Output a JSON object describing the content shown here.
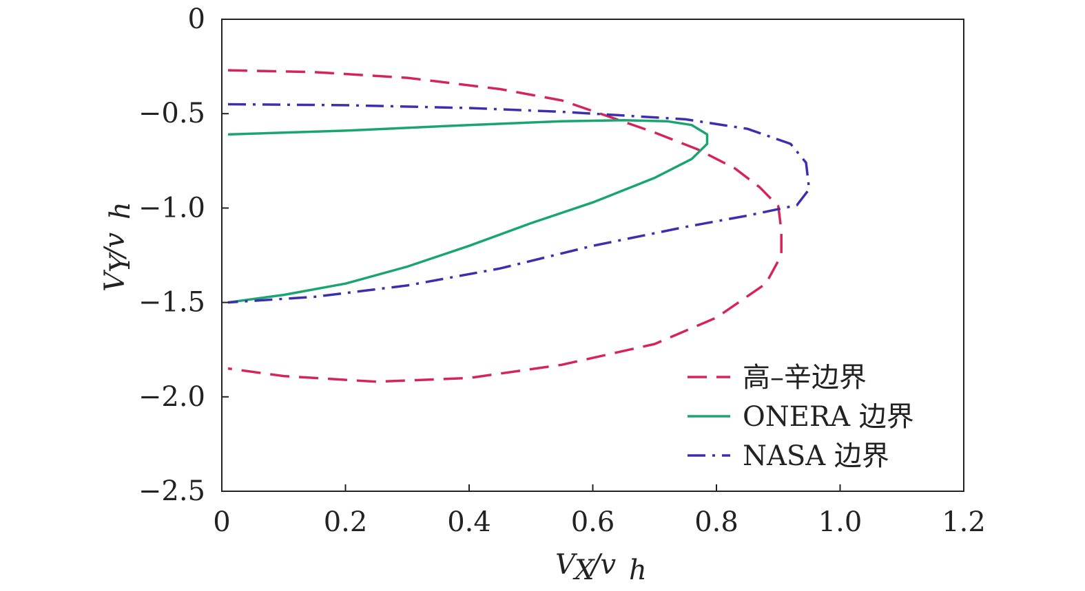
{
  "chart_data": {
    "type": "line",
    "xlabel": "V_X/v_h",
    "ylabel": "V_Y/v_h",
    "xlim": [
      0,
      1.2
    ],
    "ylim": [
      -2.5,
      0
    ],
    "x_ticks": [
      0,
      0.2,
      0.4,
      0.6,
      0.8,
      1.0,
      1.2
    ],
    "x_tick_labels": [
      "0",
      "0.2",
      "0.4",
      "0.6",
      "0.8",
      "1.0",
      "1.2"
    ],
    "y_ticks": [
      0,
      -0.5,
      -1.0,
      -1.5,
      -2.0,
      -2.5
    ],
    "y_tick_labels": [
      "0",
      "−0.5",
      "−1.0",
      "−1.5",
      "−2.0",
      "−2.5"
    ],
    "grid": false,
    "legend_position": "bottom-right",
    "series": [
      {
        "name": "高–辛边界",
        "color": "#d6245a",
        "dash": "dashed",
        "points": [
          [
            0.01,
            -0.27
          ],
          [
            0.15,
            -0.28
          ],
          [
            0.3,
            -0.31
          ],
          [
            0.45,
            -0.37
          ],
          [
            0.55,
            -0.43
          ],
          [
            0.63,
            -0.52
          ],
          [
            0.7,
            -0.6
          ],
          [
            0.77,
            -0.69
          ],
          [
            0.83,
            -0.79
          ],
          [
            0.87,
            -0.89
          ],
          [
            0.9,
            -0.99
          ],
          [
            0.905,
            -1.12
          ],
          [
            0.905,
            -1.25
          ],
          [
            0.88,
            -1.4
          ],
          [
            0.8,
            -1.58
          ],
          [
            0.7,
            -1.72
          ],
          [
            0.55,
            -1.83
          ],
          [
            0.4,
            -1.9
          ],
          [
            0.25,
            -1.92
          ],
          [
            0.1,
            -1.89
          ],
          [
            0.01,
            -1.85
          ]
        ]
      },
      {
        "name": "ONERA 边界",
        "color": "#1aa56f",
        "dash": "solid",
        "points": [
          [
            0.01,
            -0.61
          ],
          [
            0.2,
            -0.59
          ],
          [
            0.4,
            -0.56
          ],
          [
            0.55,
            -0.54
          ],
          [
            0.65,
            -0.535
          ],
          [
            0.72,
            -0.54
          ],
          [
            0.76,
            -0.56
          ],
          [
            0.785,
            -0.61
          ],
          [
            0.785,
            -0.66
          ],
          [
            0.76,
            -0.74
          ],
          [
            0.7,
            -0.84
          ],
          [
            0.6,
            -0.97
          ],
          [
            0.5,
            -1.08
          ],
          [
            0.4,
            -1.2
          ],
          [
            0.3,
            -1.31
          ],
          [
            0.2,
            -1.4
          ],
          [
            0.1,
            -1.46
          ],
          [
            0.01,
            -1.5
          ]
        ]
      },
      {
        "name": "NASA 边界",
        "color": "#3b2fb0",
        "dash": "dashdot",
        "points": [
          [
            0.01,
            -0.45
          ],
          [
            0.2,
            -0.455
          ],
          [
            0.4,
            -0.47
          ],
          [
            0.55,
            -0.49
          ],
          [
            0.65,
            -0.51
          ],
          [
            0.75,
            -0.53
          ],
          [
            0.85,
            -0.58
          ],
          [
            0.92,
            -0.66
          ],
          [
            0.945,
            -0.76
          ],
          [
            0.95,
            -0.9
          ],
          [
            0.93,
            -0.985
          ],
          [
            0.85,
            -1.04
          ],
          [
            0.75,
            -1.1
          ],
          [
            0.6,
            -1.2
          ],
          [
            0.45,
            -1.32
          ],
          [
            0.3,
            -1.41
          ],
          [
            0.15,
            -1.47
          ],
          [
            0.01,
            -1.5
          ]
        ]
      }
    ]
  }
}
